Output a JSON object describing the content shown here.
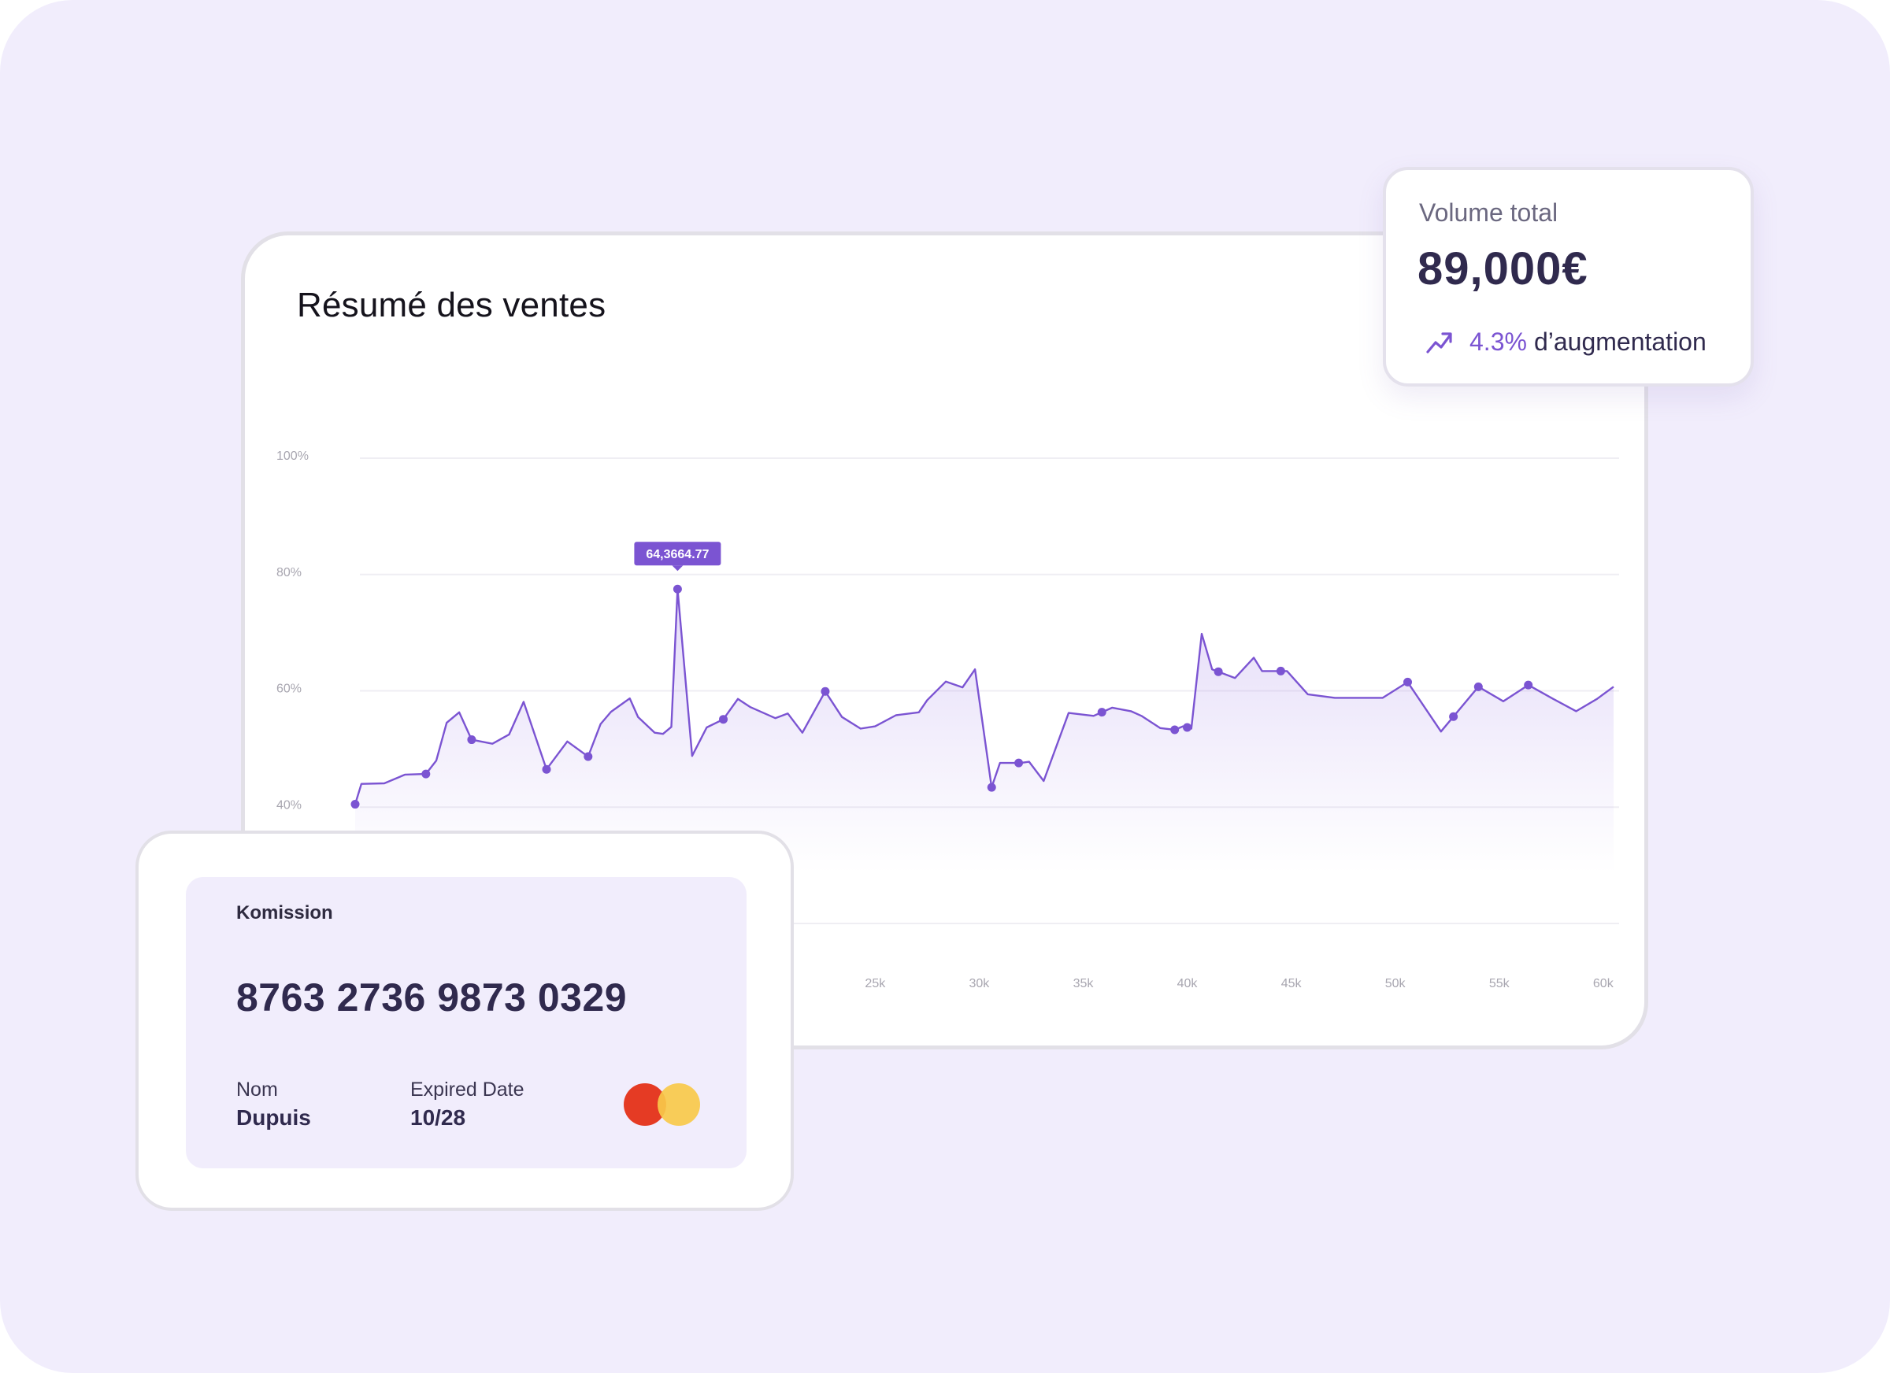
{
  "chart": {
    "title": "Résumé des ventes",
    "tooltip": "64,3664.77"
  },
  "volume": {
    "label": "Volume total",
    "value": "89,000€",
    "change_pct": "4.3%",
    "change_text": "d’augmentation",
    "trend_icon": "trending-up-icon"
  },
  "commission_card": {
    "title": "Komission",
    "number": "8763 2736 9873 0329",
    "name_label": "Nom",
    "name_value": "Dupuis",
    "expiry_label": "Expired Date",
    "expiry_value": "10/28",
    "logo_icon": "mastercard-logo-icon",
    "logo_colors": [
      "#e53b24",
      "#f8c94a"
    ]
  },
  "colors": {
    "background": "#f1edfc",
    "accent": "#7b54d2",
    "text_dark": "#302a4e"
  },
  "chart_data": {
    "type": "area",
    "title": "Résumé des ventes",
    "xlabel": "",
    "ylabel": "",
    "y_tick_labels": [
      "100%",
      "80%",
      "60%",
      "40%"
    ],
    "x_tick_labels": [
      "25k",
      "30k",
      "35k",
      "40k",
      "45k",
      "50k",
      "55k",
      "60k"
    ],
    "ylim": [
      20,
      100
    ],
    "xlim": [
      0,
      60.5
    ],
    "grid": true,
    "x": [
      0,
      0.3,
      1.4,
      2.4,
      3.4,
      3.9,
      4.4,
      5.0,
      5.6,
      6.6,
      7.4,
      8.1,
      9.2,
      10.2,
      11.2,
      11.8,
      12.3,
      13.2,
      13.6,
      14.4,
      14.8,
      15.2,
      15.5,
      16.2,
      16.9,
      17.7,
      18.4,
      19.0,
      20.2,
      20.8,
      21.5,
      22.6,
      23.4,
      24.3,
      25.0,
      26.0,
      27.1,
      27.5,
      28.4,
      29.2,
      29.8,
      30.6,
      31.0,
      32.0,
      32.4,
      33.1,
      34.3,
      35.5,
      36.4,
      37.3,
      37.8,
      38.7,
      39.4,
      39.8,
      40.2,
      40.7,
      41.2,
      42.3,
      43.2,
      43.6,
      44.8,
      45.8,
      47.1,
      47.8,
      49.4,
      50.6,
      52.2,
      54.0,
      55.2,
      56.4,
      57.6,
      58.7,
      59.7,
      60.5
    ],
    "series": [
      {
        "values": [
          40.5,
          44,
          44.1,
          45.6,
          45.7,
          48,
          54.5,
          56.3,
          51.6,
          50.9,
          52.5,
          58.1,
          46.5,
          51.3,
          48.7,
          54.3,
          56.4,
          58.7,
          55.5,
          52.8,
          52.6,
          53.8,
          77.5,
          48.8,
          53.7,
          55.1,
          58.6,
          57.2,
          55.3,
          56.1,
          52.8,
          59.9,
          55.5,
          53.5,
          53.9,
          55.8,
          56.3,
          58.4,
          61.6,
          60.6,
          63.7,
          43.4,
          47.6,
          47.6,
          47.8,
          44.5,
          56.2,
          55.7,
          57.1,
          56.5,
          55.7,
          53.6,
          53.3,
          53.9,
          53.5,
          69.8,
          63.7,
          62.2,
          65.7,
          63.4,
          63.4,
          59.4,
          58.8,
          58.8,
          58.8,
          61.5,
          53,
          60.7,
          58.2,
          61,
          58.6,
          56.5,
          58.6,
          60.7
        ]
      }
    ],
    "markers_x": [
      0,
      3.4,
      5.6,
      9.2,
      11.2,
      15.5,
      17.7,
      22.6,
      30.6,
      31.9,
      35.9,
      39.4,
      40.0,
      41.5,
      44.5,
      50.6,
      52.8,
      54.0,
      56.4
    ],
    "tooltip": {
      "x": 15.5,
      "label": "64,3664.77"
    }
  }
}
